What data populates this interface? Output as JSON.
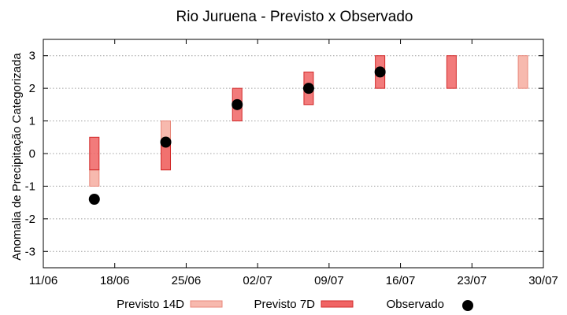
{
  "chart_data": {
    "type": "range-bar+scatter",
    "title": "Rio Juruena - Previsto x Observado",
    "xlabel": "",
    "ylabel": "Anomalia de Precipitação Categorizada",
    "x_ticks": [
      "11/06",
      "18/06",
      "25/06",
      "02/07",
      "09/07",
      "16/07",
      "23/07",
      "30/07"
    ],
    "y_ticks": [
      "-3",
      "-2",
      "-1",
      "0",
      "1",
      "2",
      "3"
    ],
    "ylim": [
      -3.5,
      3.5
    ],
    "grid": "horizontal dotted",
    "legend_position": "bottom",
    "series": [
      {
        "name": "Previsto 14D",
        "color": "#f7b9ae",
        "border": "#e8877a",
        "ranges": [
          {
            "x": "16/06",
            "low": -1.0,
            "high": -0.5
          },
          {
            "x": "23/06",
            "low": -0.5,
            "high": 1.0
          },
          {
            "x": "28/07",
            "low": 2.0,
            "high": 3.0
          }
        ]
      },
      {
        "name": "Previsto 7D",
        "color": "#f06464",
        "border": "#d22a2a",
        "ranges": [
          {
            "x": "16/06",
            "low": -0.5,
            "high": 0.5
          },
          {
            "x": "23/06",
            "low": -0.5,
            "high": 0.35
          },
          {
            "x": "30/06",
            "low": 1.0,
            "high": 2.0
          },
          {
            "x": "07/07",
            "low": 1.5,
            "high": 2.5
          },
          {
            "x": "14/07",
            "low": 2.0,
            "high": 3.0
          },
          {
            "x": "21/07",
            "low": 2.0,
            "high": 3.0
          }
        ]
      },
      {
        "name": "Observado",
        "color": "#000000",
        "points": [
          {
            "x": "16/06",
            "y": -1.4
          },
          {
            "x": "23/06",
            "y": 0.35
          },
          {
            "x": "30/06",
            "y": 1.5
          },
          {
            "x": "07/07",
            "y": 2.0
          },
          {
            "x": "14/07",
            "y": 2.5
          }
        ]
      }
    ]
  }
}
